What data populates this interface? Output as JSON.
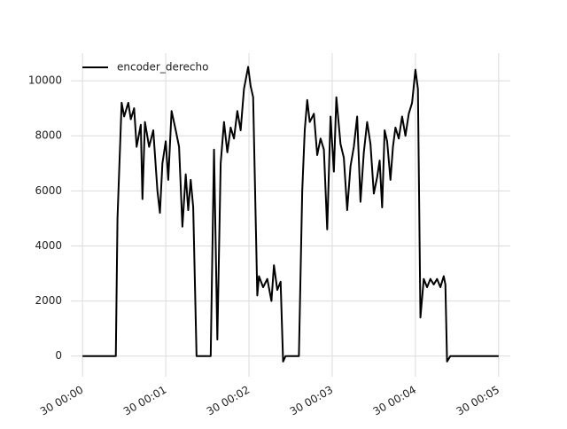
{
  "chart_data": {
    "type": "line",
    "x": [
      0,
      0.4,
      0.42,
      0.47,
      0.5,
      0.55,
      0.58,
      0.62,
      0.65,
      0.7,
      0.72,
      0.75,
      0.8,
      0.85,
      0.9,
      0.93,
      0.96,
      1.0,
      1.03,
      1.07,
      1.12,
      1.16,
      1.2,
      1.24,
      1.27,
      1.3,
      1.33,
      1.37,
      1.54,
      1.58,
      1.62,
      1.66,
      1.7,
      1.74,
      1.78,
      1.82,
      1.86,
      1.9,
      1.94,
      1.99,
      2.02,
      2.05,
      2.1,
      2.12,
      2.17,
      2.22,
      2.27,
      2.3,
      2.34,
      2.38,
      2.41,
      2.44,
      2.6,
      2.64,
      2.67,
      2.7,
      2.73,
      2.78,
      2.82,
      2.86,
      2.9,
      2.94,
      2.98,
      3.02,
      3.05,
      3.1,
      3.14,
      3.18,
      3.22,
      3.26,
      3.3,
      3.34,
      3.38,
      3.42,
      3.46,
      3.5,
      3.54,
      3.57,
      3.6,
      3.63,
      3.66,
      3.7,
      3.73,
      3.76,
      3.8,
      3.84,
      3.88,
      3.92,
      3.96,
      4.0,
      4.03,
      4.06,
      4.1,
      4.14,
      4.18,
      4.22,
      4.26,
      4.3,
      4.34,
      4.36,
      4.38,
      4.42,
      5.0
    ],
    "series": [
      {
        "name": "encoder_derecho",
        "color": "#000000",
        "values": [
          0,
          0,
          5000,
          9200,
          8700,
          9200,
          8600,
          9000,
          7600,
          8400,
          5700,
          8500,
          7600,
          8200,
          6000,
          5200,
          7000,
          7800,
          6400,
          8900,
          8200,
          7600,
          4700,
          6600,
          5300,
          6400,
          5400,
          0,
          0,
          7500,
          600,
          7000,
          8500,
          7400,
          8300,
          7900,
          8900,
          8200,
          9700,
          10500,
          9800,
          9400,
          2200,
          2900,
          2500,
          2800,
          2000,
          3300,
          2400,
          2700,
          -200,
          0,
          0,
          6000,
          8200,
          9300,
          8500,
          8800,
          7300,
          7900,
          7500,
          4600,
          8700,
          6700,
          9400,
          7700,
          7200,
          5300,
          6900,
          7600,
          8700,
          5600,
          7400,
          8500,
          7700,
          5900,
          6500,
          7100,
          5400,
          8200,
          7800,
          6400,
          7600,
          8300,
          7900,
          8700,
          8000,
          8800,
          9200,
          10400,
          9700,
          1400,
          2800,
          2500,
          2800,
          2600,
          2800,
          2500,
          2900,
          2600,
          -200,
          0,
          0
        ]
      }
    ],
    "xlim": [
      -0.14,
      5.14
    ],
    "xticks": [
      {
        "value": 0,
        "label": "30 00:00"
      },
      {
        "value": 1,
        "label": "30 00:01"
      },
      {
        "value": 2,
        "label": "30 00:02"
      },
      {
        "value": 3,
        "label": "30 00:03"
      },
      {
        "value": 4,
        "label": "30 00:04"
      },
      {
        "value": 5,
        "label": "30 00:05"
      }
    ],
    "ylim": [
      -750,
      11000
    ],
    "yticks": [
      0,
      2000,
      4000,
      6000,
      8000,
      10000
    ],
    "grid": true,
    "legend": "upper left"
  }
}
